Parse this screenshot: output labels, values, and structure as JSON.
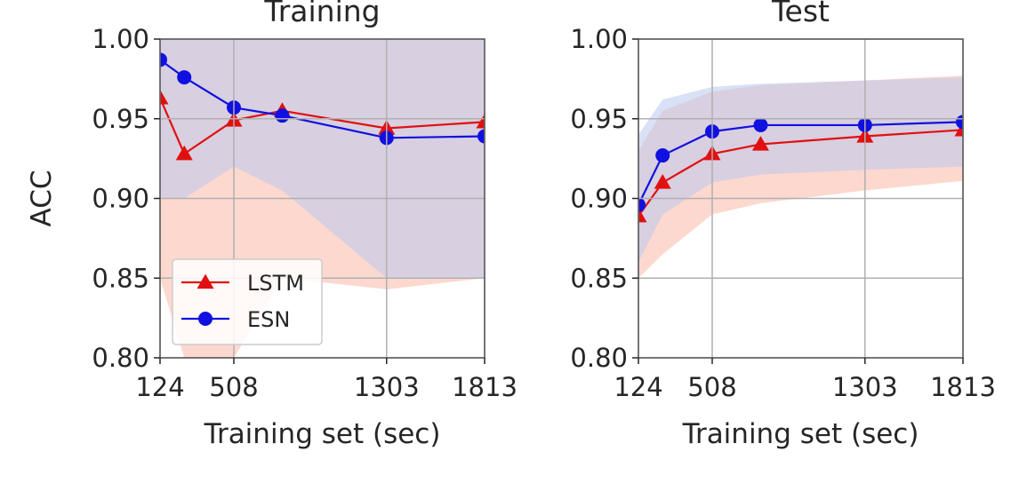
{
  "chart_data": [
    {
      "type": "line",
      "title": "Training",
      "xlabel": "Training set (sec)",
      "ylabel": "ACC",
      "xlim": [
        124,
        1813
      ],
      "ylim": [
        0.8,
        1.0
      ],
      "xticks": [
        124,
        508,
        1303,
        1813
      ],
      "xtick_labels": [
        "124",
        "508",
        "1303",
        "1813"
      ],
      "yticks": [
        0.8,
        0.85,
        0.9,
        0.95,
        1.0
      ],
      "ytick_labels": [
        "0.80",
        "0.85",
        "0.90",
        "0.95",
        "1.00"
      ],
      "grid": true,
      "legend": {
        "position": "lower-left"
      },
      "series": [
        {
          "name": "LSTM",
          "color": "#e01010",
          "marker": "triangle",
          "band_color": "#fbb8a5",
          "x": [
            124,
            250,
            508,
            760,
            1303,
            1813
          ],
          "y": [
            0.963,
            0.928,
            0.949,
            0.955,
            0.944,
            0.948
          ],
          "band_lower": [
            0.85,
            0.8,
            0.8,
            0.85,
            0.843,
            0.85
          ],
          "band_upper": [
            1.0,
            1.0,
            1.0,
            1.0,
            1.0,
            1.0
          ]
        },
        {
          "name": "ESN",
          "color": "#1010e0",
          "marker": "circle",
          "band_color": "#b9c8ee",
          "x": [
            124,
            250,
            508,
            760,
            1303,
            1813
          ],
          "y": [
            0.987,
            0.976,
            0.957,
            0.952,
            0.938,
            0.939
          ],
          "band_lower": [
            0.9,
            0.9,
            0.92,
            0.905,
            0.85,
            0.85
          ],
          "band_upper": [
            1.0,
            1.0,
            1.0,
            1.0,
            1.0,
            1.0
          ]
        }
      ]
    },
    {
      "type": "line",
      "title": "Test",
      "xlabel": "Training set (sec)",
      "ylabel": "",
      "xlim": [
        124,
        1813
      ],
      "ylim": [
        0.8,
        1.0
      ],
      "xticks": [
        124,
        508,
        1303,
        1813
      ],
      "xtick_labels": [
        "124",
        "508",
        "1303",
        "1813"
      ],
      "yticks": [
        0.8,
        0.85,
        0.9,
        0.95,
        1.0
      ],
      "ytick_labels": [
        "0.80",
        "0.85",
        "0.90",
        "0.95",
        "1.00"
      ],
      "grid": true,
      "series": [
        {
          "name": "LSTM",
          "color": "#e01010",
          "marker": "triangle",
          "band_color": "#fbb8a5",
          "x": [
            124,
            250,
            508,
            760,
            1303,
            1813
          ],
          "y": [
            0.889,
            0.91,
            0.928,
            0.934,
            0.939,
            0.943
          ],
          "band_lower": [
            0.85,
            0.865,
            0.89,
            0.897,
            0.905,
            0.911
          ],
          "band_upper": [
            0.93,
            0.955,
            0.967,
            0.971,
            0.974,
            0.977
          ]
        },
        {
          "name": "ESN",
          "color": "#1010e0",
          "marker": "circle",
          "band_color": "#b9c8ee",
          "x": [
            124,
            250,
            508,
            760,
            1303,
            1813
          ],
          "y": [
            0.896,
            0.927,
            0.942,
            0.946,
            0.946,
            0.948
          ],
          "band_lower": [
            0.86,
            0.89,
            0.91,
            0.915,
            0.918,
            0.92
          ],
          "band_upper": [
            0.94,
            0.962,
            0.97,
            0.972,
            0.974,
            0.976
          ]
        }
      ]
    }
  ]
}
